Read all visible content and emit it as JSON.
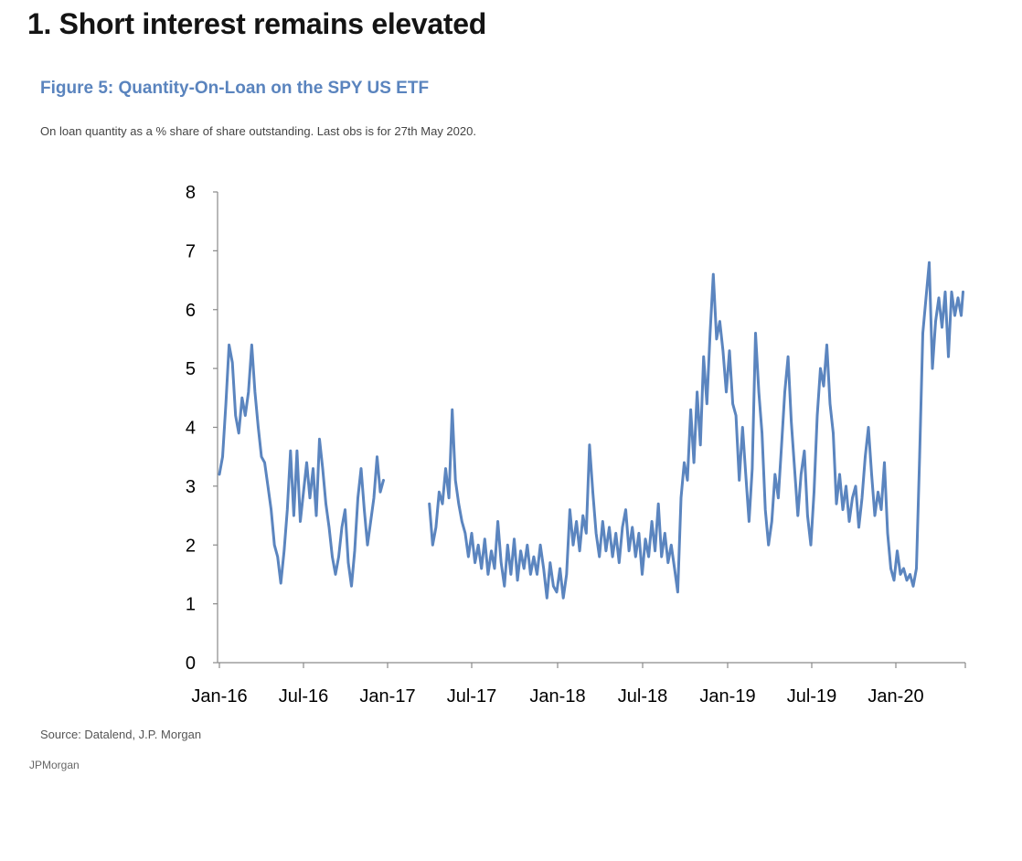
{
  "page": {
    "headline": "1. Short interest remains elevated",
    "source": "Source: Datalend, J.P. Morgan",
    "brand": "JPMorgan"
  },
  "chart_data": {
    "type": "line",
    "title": "Figure 5: Quantity-On-Loan on the SPY US ETF",
    "subtitle": "On loan quantity as a % share of share outstanding. Last obs is for 27th May 2020.",
    "xlabel": "",
    "ylabel": "",
    "ylim": [
      0,
      8
    ],
    "yticks": [
      "0",
      "1",
      "2",
      "3",
      "4",
      "5",
      "6",
      "7",
      "8"
    ],
    "xticks": [
      "Jan-16",
      "Jul-16",
      "Jan-17",
      "Jul-17",
      "Jan-18",
      "Jul-18",
      "Jan-19",
      "Jul-19",
      "Jan-20"
    ],
    "x_start": "2016-01-01",
    "x_end": "2020-05-27",
    "grid": false,
    "legend": "none",
    "line_color": "#5b85bf",
    "series": [
      {
        "name": "",
        "points": [
          [
            "2016-01-01",
            3.2
          ],
          [
            "2016-01-08",
            3.5
          ],
          [
            "2016-01-15",
            4.4
          ],
          [
            "2016-01-22",
            5.4
          ],
          [
            "2016-01-29",
            5.1
          ],
          [
            "2016-02-05",
            4.2
          ],
          [
            "2016-02-12",
            3.9
          ],
          [
            "2016-02-19",
            4.5
          ],
          [
            "2016-02-26",
            4.2
          ],
          [
            "2016-03-04",
            4.6
          ],
          [
            "2016-03-11",
            5.4
          ],
          [
            "2016-03-18",
            4.6
          ],
          [
            "2016-03-25",
            4.0
          ],
          [
            "2016-04-01",
            3.5
          ],
          [
            "2016-04-08",
            3.4
          ],
          [
            "2016-04-15",
            3.0
          ],
          [
            "2016-04-22",
            2.6
          ],
          [
            "2016-04-29",
            2.0
          ],
          [
            "2016-05-06",
            1.8
          ],
          [
            "2016-05-13",
            1.35
          ],
          [
            "2016-05-20",
            1.9
          ],
          [
            "2016-05-27",
            2.6
          ],
          [
            "2016-06-03",
            3.6
          ],
          [
            "2016-06-10",
            2.5
          ],
          [
            "2016-06-17",
            3.6
          ],
          [
            "2016-06-24",
            2.4
          ],
          [
            "2016-07-01",
            2.9
          ],
          [
            "2016-07-08",
            3.4
          ],
          [
            "2016-07-15",
            2.8
          ],
          [
            "2016-07-22",
            3.3
          ],
          [
            "2016-07-29",
            2.5
          ],
          [
            "2016-08-05",
            3.8
          ],
          [
            "2016-08-12",
            3.3
          ],
          [
            "2016-08-19",
            2.7
          ],
          [
            "2016-08-26",
            2.3
          ],
          [
            "2016-09-02",
            1.8
          ],
          [
            "2016-09-09",
            1.5
          ],
          [
            "2016-09-16",
            1.8
          ],
          [
            "2016-09-23",
            2.3
          ],
          [
            "2016-09-30",
            2.6
          ],
          [
            "2016-10-07",
            1.7
          ],
          [
            "2016-10-14",
            1.3
          ],
          [
            "2016-10-21",
            1.9
          ],
          [
            "2016-10-28",
            2.8
          ],
          [
            "2016-11-04",
            3.3
          ],
          [
            "2016-11-11",
            2.6
          ],
          [
            "2016-11-18",
            2.0
          ],
          [
            "2016-11-25",
            2.4
          ],
          [
            "2016-12-02",
            2.8
          ],
          [
            "2016-12-09",
            3.5
          ],
          [
            "2016-12-16",
            2.9
          ],
          [
            "2016-12-23",
            3.1
          ],
          null,
          [
            "2017-04-01",
            2.7
          ],
          [
            "2017-04-08",
            2.0
          ],
          [
            "2017-04-15",
            2.3
          ],
          [
            "2017-04-22",
            2.9
          ],
          [
            "2017-04-29",
            2.7
          ],
          [
            "2017-05-06",
            3.3
          ],
          [
            "2017-05-13",
            2.8
          ],
          [
            "2017-05-20",
            4.3
          ],
          [
            "2017-05-27",
            3.1
          ],
          [
            "2017-06-03",
            2.7
          ],
          [
            "2017-06-10",
            2.4
          ],
          [
            "2017-06-17",
            2.2
          ],
          [
            "2017-06-24",
            1.8
          ],
          [
            "2017-07-01",
            2.2
          ],
          [
            "2017-07-08",
            1.7
          ],
          [
            "2017-07-15",
            2.0
          ],
          [
            "2017-07-22",
            1.6
          ],
          [
            "2017-07-29",
            2.1
          ],
          [
            "2017-08-05",
            1.5
          ],
          [
            "2017-08-12",
            1.9
          ],
          [
            "2017-08-19",
            1.6
          ],
          [
            "2017-08-26",
            2.4
          ],
          [
            "2017-09-02",
            1.7
          ],
          [
            "2017-09-09",
            1.3
          ],
          [
            "2017-09-16",
            2.0
          ],
          [
            "2017-09-23",
            1.5
          ],
          [
            "2017-09-30",
            2.1
          ],
          [
            "2017-10-07",
            1.4
          ],
          [
            "2017-10-14",
            1.9
          ],
          [
            "2017-10-21",
            1.6
          ],
          [
            "2017-10-28",
            2.0
          ],
          [
            "2017-11-04",
            1.5
          ],
          [
            "2017-11-11",
            1.8
          ],
          [
            "2017-11-18",
            1.5
          ],
          [
            "2017-11-25",
            2.0
          ],
          [
            "2017-12-02",
            1.6
          ],
          [
            "2017-12-09",
            1.1
          ],
          [
            "2017-12-16",
            1.7
          ],
          [
            "2017-12-23",
            1.3
          ],
          [
            "2017-12-30",
            1.2
          ],
          [
            "2018-01-06",
            1.6
          ],
          [
            "2018-01-13",
            1.1
          ],
          [
            "2018-01-20",
            1.5
          ],
          [
            "2018-01-27",
            2.6
          ],
          [
            "2018-02-03",
            2.0
          ],
          [
            "2018-02-10",
            2.4
          ],
          [
            "2018-02-17",
            1.9
          ],
          [
            "2018-02-24",
            2.5
          ],
          [
            "2018-03-03",
            2.2
          ],
          [
            "2018-03-10",
            3.7
          ],
          [
            "2018-03-17",
            2.9
          ],
          [
            "2018-03-24",
            2.2
          ],
          [
            "2018-03-31",
            1.8
          ],
          [
            "2018-04-07",
            2.4
          ],
          [
            "2018-04-14",
            1.9
          ],
          [
            "2018-04-21",
            2.3
          ],
          [
            "2018-04-28",
            1.8
          ],
          [
            "2018-05-05",
            2.2
          ],
          [
            "2018-05-12",
            1.7
          ],
          [
            "2018-05-19",
            2.3
          ],
          [
            "2018-05-26",
            2.6
          ],
          [
            "2018-06-02",
            1.9
          ],
          [
            "2018-06-09",
            2.3
          ],
          [
            "2018-06-16",
            1.8
          ],
          [
            "2018-06-23",
            2.2
          ],
          [
            "2018-06-30",
            1.5
          ],
          [
            "2018-07-07",
            2.1
          ],
          [
            "2018-07-14",
            1.8
          ],
          [
            "2018-07-21",
            2.4
          ],
          [
            "2018-07-28",
            1.9
          ],
          [
            "2018-08-04",
            2.7
          ],
          [
            "2018-08-11",
            1.8
          ],
          [
            "2018-08-18",
            2.2
          ],
          [
            "2018-08-25",
            1.7
          ],
          [
            "2018-09-01",
            2.0
          ],
          [
            "2018-09-08",
            1.6
          ],
          [
            "2018-09-15",
            1.2
          ],
          [
            "2018-09-22",
            2.8
          ],
          [
            "2018-09-29",
            3.4
          ],
          [
            "2018-10-06",
            3.1
          ],
          [
            "2018-10-13",
            4.3
          ],
          [
            "2018-10-20",
            3.4
          ],
          [
            "2018-10-27",
            4.6
          ],
          [
            "2018-11-03",
            3.7
          ],
          [
            "2018-11-10",
            5.2
          ],
          [
            "2018-11-17",
            4.4
          ],
          [
            "2018-11-24",
            5.6
          ],
          [
            "2018-12-01",
            6.6
          ],
          [
            "2018-12-08",
            5.5
          ],
          [
            "2018-12-15",
            5.8
          ],
          [
            "2018-12-22",
            5.3
          ],
          [
            "2018-12-29",
            4.6
          ],
          [
            "2019-01-05",
            5.3
          ],
          [
            "2019-01-12",
            4.4
          ],
          [
            "2019-01-19",
            4.2
          ],
          [
            "2019-01-26",
            3.1
          ],
          [
            "2019-02-02",
            4.0
          ],
          [
            "2019-02-09",
            3.2
          ],
          [
            "2019-02-16",
            2.4
          ],
          [
            "2019-02-23",
            3.3
          ],
          [
            "2019-03-02",
            5.6
          ],
          [
            "2019-03-09",
            4.6
          ],
          [
            "2019-03-16",
            3.9
          ],
          [
            "2019-03-23",
            2.6
          ],
          [
            "2019-03-30",
            2.0
          ],
          [
            "2019-04-06",
            2.4
          ],
          [
            "2019-04-13",
            3.2
          ],
          [
            "2019-04-20",
            2.8
          ],
          [
            "2019-04-27",
            3.7
          ],
          [
            "2019-05-04",
            4.6
          ],
          [
            "2019-05-11",
            5.2
          ],
          [
            "2019-05-18",
            4.1
          ],
          [
            "2019-05-25",
            3.3
          ],
          [
            "2019-06-01",
            2.5
          ],
          [
            "2019-06-08",
            3.2
          ],
          [
            "2019-06-15",
            3.6
          ],
          [
            "2019-06-22",
            2.5
          ],
          [
            "2019-06-29",
            2.0
          ],
          [
            "2019-07-06",
            2.9
          ],
          [
            "2019-07-13",
            4.2
          ],
          [
            "2019-07-20",
            5.0
          ],
          [
            "2019-07-27",
            4.7
          ],
          [
            "2019-08-03",
            5.4
          ],
          [
            "2019-08-10",
            4.4
          ],
          [
            "2019-08-17",
            3.9
          ],
          [
            "2019-08-24",
            2.7
          ],
          [
            "2019-08-31",
            3.2
          ],
          [
            "2019-09-07",
            2.6
          ],
          [
            "2019-09-14",
            3.0
          ],
          [
            "2019-09-21",
            2.4
          ],
          [
            "2019-09-28",
            2.8
          ],
          [
            "2019-10-05",
            3.0
          ],
          [
            "2019-10-12",
            2.3
          ],
          [
            "2019-10-19",
            2.8
          ],
          [
            "2019-10-26",
            3.5
          ],
          [
            "2019-11-02",
            4.0
          ],
          [
            "2019-11-09",
            3.2
          ],
          [
            "2019-11-16",
            2.5
          ],
          [
            "2019-11-23",
            2.9
          ],
          [
            "2019-11-30",
            2.6
          ],
          [
            "2019-12-07",
            3.4
          ],
          [
            "2019-12-14",
            2.2
          ],
          [
            "2019-12-21",
            1.6
          ],
          [
            "2019-12-28",
            1.4
          ],
          [
            "2020-01-04",
            1.9
          ],
          [
            "2020-01-11",
            1.5
          ],
          [
            "2020-01-18",
            1.6
          ],
          [
            "2020-01-25",
            1.4
          ],
          [
            "2020-02-01",
            1.5
          ],
          [
            "2020-02-08",
            1.3
          ],
          [
            "2020-02-15",
            1.6
          ],
          [
            "2020-02-22",
            3.5
          ],
          [
            "2020-02-29",
            5.6
          ],
          [
            "2020-03-07",
            6.2
          ],
          [
            "2020-03-14",
            6.8
          ],
          [
            "2020-03-21",
            5.0
          ],
          [
            "2020-03-28",
            5.8
          ],
          [
            "2020-04-04",
            6.2
          ],
          [
            "2020-04-11",
            5.7
          ],
          [
            "2020-04-18",
            6.3
          ],
          [
            "2020-04-25",
            5.2
          ],
          [
            "2020-05-02",
            6.3
          ],
          [
            "2020-05-09",
            5.9
          ],
          [
            "2020-05-16",
            6.2
          ],
          [
            "2020-05-23",
            5.9
          ],
          [
            "2020-05-27",
            6.3
          ]
        ]
      }
    ]
  }
}
